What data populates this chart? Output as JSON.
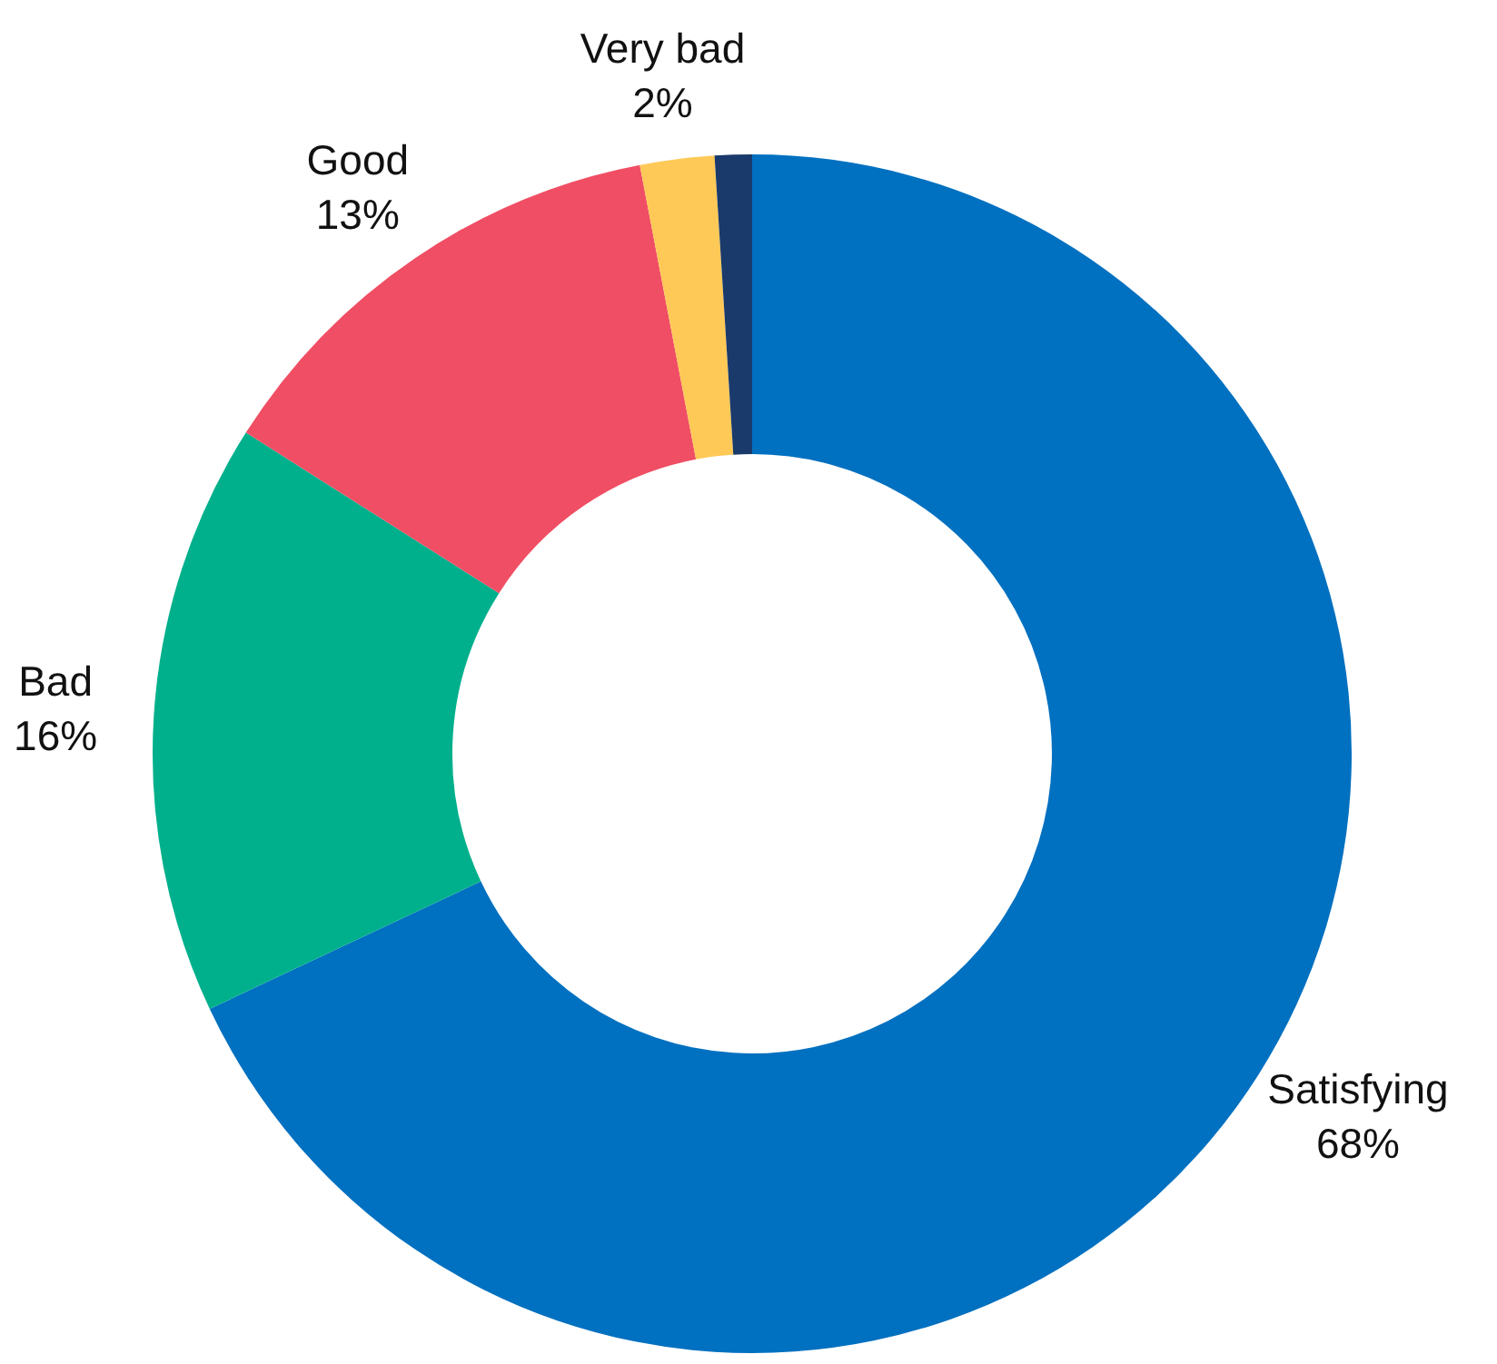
{
  "chart_data": {
    "type": "donut",
    "categories": [
      "Satisfying",
      "Bad",
      "Good",
      "Very bad",
      null
    ],
    "values": [
      68,
      16,
      13,
      2,
      1
    ],
    "value_labels": [
      "68%",
      "16%",
      "13%",
      "2%",
      null
    ],
    "colors": [
      "#0070c0",
      "#00b08c",
      "#f04e64",
      "#fec957",
      "#1a3a6b"
    ],
    "legend": false
  }
}
